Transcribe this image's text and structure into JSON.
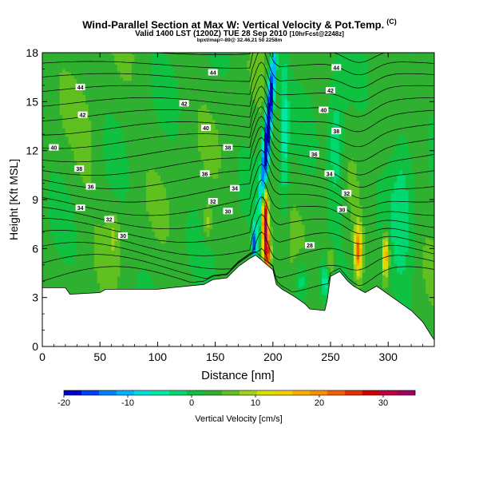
{
  "title": "Wind-Parallel Section at Max W: Vertical Velocity & Pot.Temp.",
  "title_mark": "(C)",
  "subtitle_main": "Valid 1400 LST (1200Z) TUE 28 Sep 2010",
  "subtitle_small": "[10hrFcst@2248z]",
  "subtitle2": "bpxt/map=-89@ 32.46,21 50 2258m",
  "chart_data": {
    "type": "heatmap",
    "xlabel": "Distance [nm]",
    "ylabel": "Height [Kft MSL]",
    "xlim": [
      0,
      340
    ],
    "ylim": [
      0,
      18
    ],
    "x_ticks": [
      0,
      50,
      100,
      150,
      200,
      250,
      300
    ],
    "x_tick_labels": [
      "0",
      "50",
      "100",
      "150",
      "200",
      "250",
      "300"
    ],
    "y_ticks": [
      0,
      3,
      6,
      9,
      12,
      15,
      18
    ],
    "y_tick_labels": [
      "0",
      "3",
      "6",
      "9",
      "12",
      "15",
      "18"
    ],
    "colorbar": {
      "label": "Vertical Velocity [cm/s]",
      "range": [
        -20,
        35
      ],
      "tick_values": [
        -20,
        -10,
        0,
        10,
        20,
        30
      ],
      "tick_labels": [
        "-20",
        "-10",
        "0",
        "10",
        "20",
        "30"
      ],
      "colors": [
        "#0000c8",
        "#0040ff",
        "#0080ff",
        "#00b4ff",
        "#00dcd8",
        "#00e8a8",
        "#00d870",
        "#10c040",
        "#30b030",
        "#60c020",
        "#a0d020",
        "#d8e000",
        "#f0d000",
        "#f8b000",
        "#f89000",
        "#f06000",
        "#e03000",
        "#d00000",
        "#c00040",
        "#a00060"
      ]
    },
    "ground_profile": [
      [
        0,
        3.6
      ],
      [
        20,
        3.6
      ],
      [
        24,
        3.2
      ],
      [
        50,
        3.3
      ],
      [
        55,
        3.5
      ],
      [
        100,
        3.5
      ],
      [
        112,
        3.6
      ],
      [
        140,
        3.8
      ],
      [
        148,
        4.1
      ],
      [
        160,
        4.2
      ],
      [
        170,
        4.9
      ],
      [
        180,
        5.4
      ],
      [
        185,
        5.6
      ],
      [
        190,
        5.3
      ],
      [
        195,
        5.0
      ],
      [
        200,
        4.7
      ],
      [
        203,
        3.8
      ],
      [
        208,
        3.5
      ],
      [
        213,
        3.3
      ],
      [
        220,
        3.0
      ],
      [
        228,
        2.6
      ],
      [
        232,
        2.3
      ],
      [
        245,
        2.2
      ],
      [
        247,
        2.8
      ],
      [
        250,
        4.3
      ],
      [
        258,
        4.6
      ],
      [
        265,
        4.0
      ],
      [
        270,
        3.7
      ],
      [
        280,
        3.3
      ],
      [
        290,
        3.7
      ],
      [
        300,
        3.2
      ],
      [
        310,
        2.7
      ],
      [
        320,
        2.2
      ],
      [
        330,
        1.5
      ],
      [
        338,
        0.6
      ],
      [
        340,
        0.4
      ]
    ],
    "theta_contour_labels": [
      {
        "x": 33,
        "y": 15.9,
        "text": "44"
      },
      {
        "x": 148,
        "y": 16.8,
        "text": "44"
      },
      {
        "x": 255,
        "y": 17.1,
        "text": "44"
      },
      {
        "x": 35,
        "y": 14.2,
        "text": "42"
      },
      {
        "x": 123,
        "y": 14.9,
        "text": "42"
      },
      {
        "x": 250,
        "y": 15.7,
        "text": "42"
      },
      {
        "x": 10,
        "y": 12.2,
        "text": "40"
      },
      {
        "x": 142,
        "y": 13.4,
        "text": "40"
      },
      {
        "x": 244,
        "y": 14.5,
        "text": "40"
      },
      {
        "x": 32,
        "y": 10.9,
        "text": "38"
      },
      {
        "x": 161,
        "y": 12.2,
        "text": "38"
      },
      {
        "x": 255,
        "y": 13.2,
        "text": "38"
      },
      {
        "x": 42,
        "y": 9.8,
        "text": "36"
      },
      {
        "x": 141,
        "y": 10.6,
        "text": "36"
      },
      {
        "x": 236,
        "y": 11.8,
        "text": "36"
      },
      {
        "x": 167,
        "y": 9.7,
        "text": "34"
      },
      {
        "x": 33,
        "y": 8.5,
        "text": "34"
      },
      {
        "x": 249,
        "y": 10.6,
        "text": "34"
      },
      {
        "x": 148,
        "y": 8.9,
        "text": "32"
      },
      {
        "x": 58,
        "y": 7.8,
        "text": "32"
      },
      {
        "x": 264,
        "y": 9.4,
        "text": "32"
      },
      {
        "x": 161,
        "y": 8.3,
        "text": "30"
      },
      {
        "x": 70,
        "y": 6.8,
        "text": "30"
      },
      {
        "x": 260,
        "y": 8.4,
        "text": "30"
      },
      {
        "x": 232,
        "y": 6.2,
        "text": "28"
      }
    ]
  }
}
